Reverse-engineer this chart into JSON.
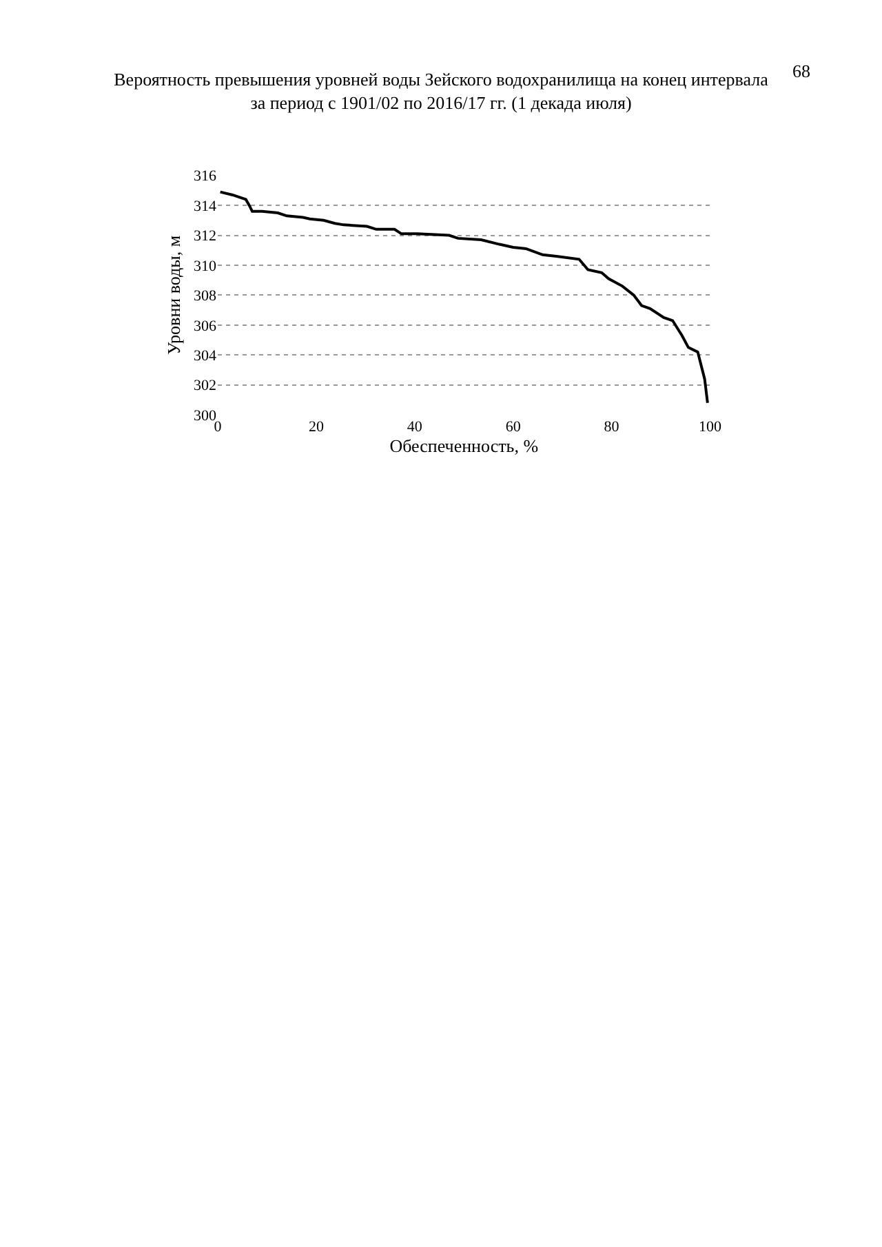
{
  "chart_data": {
    "type": "line",
    "title": "Вероятность превышения уровней воды Зейского водохранилища на конец интервала\nза период с 1901/02 по 2016/17 гг. (1 декада июля)",
    "xlabel": "Обеспеченность, %",
    "ylabel": "Уровни воды, м",
    "annotations": [
      "68"
    ],
    "x": [
      0.5,
      3,
      5.7,
      6.4,
      7,
      9,
      12.2,
      14,
      17.3,
      18.7,
      21.5,
      23.8,
      25.6,
      30.3,
      32.2,
      35.9,
      37.3,
      40.5,
      47,
      48.8,
      53.5,
      57.2,
      60,
      62.7,
      66,
      68.8,
      73.4,
      75.2,
      78,
      79.4,
      82.2,
      84.5,
      86.1,
      87.8,
      90.6,
      92.4,
      94.3,
      95.6,
      97.5,
      98.9,
      99.5
    ],
    "series": [
      {
        "color": "#000000",
        "values": [
          314.9,
          314.7,
          314.4,
          314.0,
          313.6,
          313.6,
          313.5,
          313.3,
          313.2,
          313.1,
          313.0,
          312.8,
          312.7,
          312.6,
          312.4,
          312.4,
          312.1,
          312.1,
          312.0,
          311.8,
          311.7,
          311.4,
          311.2,
          311.1,
          310.7,
          310.6,
          310.4,
          309.7,
          309.5,
          309.1,
          308.6,
          308.0,
          307.3,
          307.1,
          306.5,
          306.3,
          305.3,
          304.5,
          304.2,
          302.4,
          300.8
        ]
      }
    ],
    "xlim": [
      0,
      100
    ],
    "xticks": [
      0,
      20,
      40,
      60,
      80,
      100
    ],
    "ylim": [
      300,
      316
    ],
    "yticks": [
      300,
      302,
      304,
      306,
      308,
      310,
      312,
      314,
      316
    ],
    "grid": "y",
    "marker": "none",
    "line_style": "solid"
  }
}
